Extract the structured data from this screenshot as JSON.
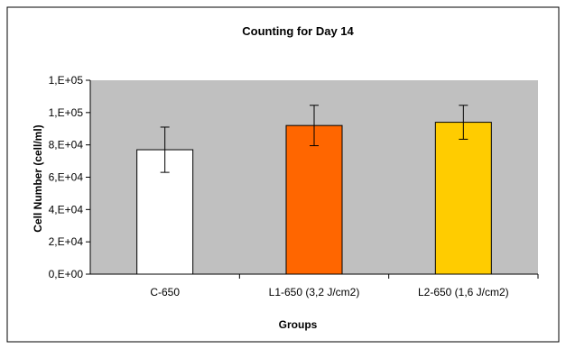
{
  "chart_data": {
    "type": "bar",
    "title": "Counting for Day 14",
    "xlabel": "Groups",
    "ylabel": "Cell Number (cell/ml)",
    "categories": [
      "C-650",
      "L1-650 (3,2 J/cm2)",
      "L2-650 (1,6 J/cm2)"
    ],
    "values": [
      77000,
      92000,
      94000
    ],
    "error": [
      14000,
      12500,
      10500
    ],
    "ylim": [
      0,
      120000
    ],
    "yticks": [
      0,
      20000,
      40000,
      60000,
      80000,
      100000,
      120000
    ],
    "ytick_labels": [
      "0,E+00",
      "2,E+04",
      "4,E+04",
      "6,E+04",
      "8,E+04",
      "1,E+05",
      "1,E+05"
    ],
    "bar_colors": [
      "#ffffff",
      "#ff6600",
      "#ffcc00"
    ],
    "plot_background": "#c0c0c0",
    "grid": false,
    "legend": "none"
  }
}
